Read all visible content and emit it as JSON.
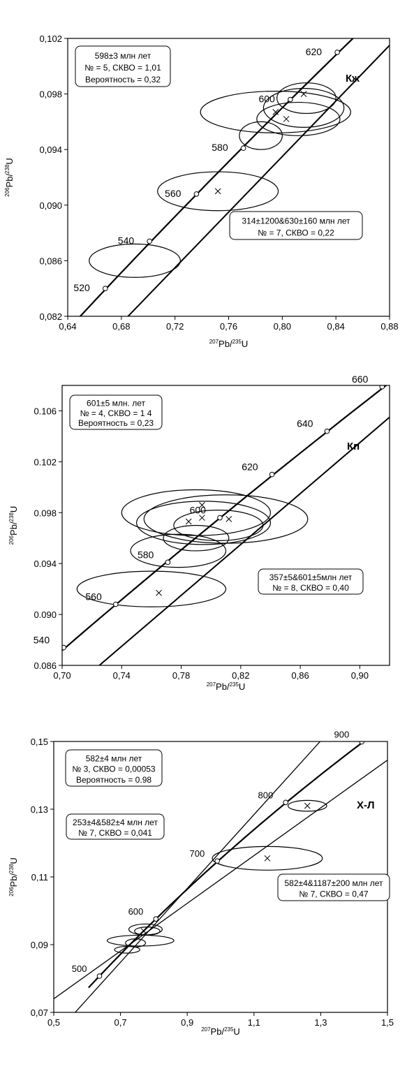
{
  "axis_labels": {
    "y_sup": "206",
    "y_main": "Pb/",
    "y_sup2": "238",
    "y_tail": "U",
    "x_sup": "207",
    "x_main": "Pb/",
    "x_sup2": "235",
    "x_tail": "U"
  },
  "chart_data": [
    {
      "type": "scatter",
      "panel_label": "Кж",
      "xlim": [
        0.64,
        0.88
      ],
      "ylim": [
        0.082,
        0.102
      ],
      "x_ticks": [
        "0,64",
        "0,68",
        "0,72",
        "0,76",
        "0,80",
        "0,84",
        "0,88"
      ],
      "y_ticks": [
        "0,082",
        "0,086",
        "0,090",
        "0,094",
        "0,098",
        "0,102"
      ],
      "concordia_ages": [
        {
          "label": "520",
          "x": 0.668,
          "y": 0.084
        },
        {
          "label": "540",
          "x": 0.701,
          "y": 0.0874
        },
        {
          "label": "560",
          "x": 0.736,
          "y": 0.0908
        },
        {
          "label": "580",
          "x": 0.771,
          "y": 0.0941
        },
        {
          "label": "600",
          "x": 0.806,
          "y": 0.0976
        },
        {
          "label": "620",
          "x": 0.841,
          "y": 0.101
        }
      ],
      "ellipses": [
        {
          "x": 0.69,
          "y": 0.086,
          "rx": 0.034,
          "ry": 0.0012
        },
        {
          "x": 0.752,
          "y": 0.091,
          "rx": 0.045,
          "ry": 0.0014
        },
        {
          "x": 0.784,
          "y": 0.095,
          "rx": 0.016,
          "ry": 0.001
        },
        {
          "x": 0.795,
          "y": 0.0967,
          "rx": 0.056,
          "ry": 0.0015
        },
        {
          "x": 0.812,
          "y": 0.0962,
          "rx": 0.031,
          "ry": 0.0012
        },
        {
          "x": 0.816,
          "y": 0.097,
          "rx": 0.03,
          "ry": 0.0014
        },
        {
          "x": 0.818,
          "y": 0.0977,
          "rx": 0.022,
          "ry": 0.0011
        }
      ],
      "points": [
        {
          "x": 0.752,
          "y": 0.091
        },
        {
          "x": 0.795,
          "y": 0.0967
        },
        {
          "x": 0.816,
          "y": 0.098
        },
        {
          "x": 0.803,
          "y": 0.0962
        }
      ],
      "info_boxes": [
        {
          "lines": [
            "598±3 млн лет",
            "№ = 5, СКВО = 1,01",
            "Вероятность = 0,32"
          ]
        },
        {
          "lines": [
            "314±1200&630±160  млн лет",
            "№ = 7, СКВО = 0,22"
          ]
        }
      ]
    },
    {
      "type": "scatter",
      "panel_label": "Кп",
      "xlim": [
        0.7,
        0.92
      ],
      "ylim": [
        0.086,
        0.108
      ],
      "x_ticks": [
        "0,70",
        "0,74",
        "0,78",
        "0,82",
        "0,86",
        "0,90"
      ],
      "y_ticks": [
        "0.086",
        "0.090",
        "0.094",
        "0.098",
        "0.102",
        "0.106"
      ],
      "concordia_ages": [
        {
          "label": "540",
          "x": 0.701,
          "y": 0.0874
        },
        {
          "label": "560",
          "x": 0.736,
          "y": 0.0908
        },
        {
          "label": "580",
          "x": 0.771,
          "y": 0.0941
        },
        {
          "label": "600",
          "x": 0.806,
          "y": 0.0976
        },
        {
          "label": "620",
          "x": 0.841,
          "y": 0.101
        },
        {
          "label": "640",
          "x": 0.878,
          "y": 0.1044
        },
        {
          "label": "660",
          "x": 0.915,
          "y": 0.1079
        }
      ],
      "ellipses": [
        {
          "x": 0.76,
          "y": 0.092,
          "rx": 0.05,
          "ry": 0.0014
        },
        {
          "x": 0.778,
          "y": 0.095,
          "rx": 0.032,
          "ry": 0.0013
        },
        {
          "x": 0.79,
          "y": 0.096,
          "rx": 0.022,
          "ry": 0.001
        },
        {
          "x": 0.795,
          "y": 0.0972,
          "rx": 0.045,
          "ry": 0.0017
        },
        {
          "x": 0.805,
          "y": 0.097,
          "rx": 0.03,
          "ry": 0.0012
        },
        {
          "x": 0.81,
          "y": 0.0975,
          "rx": 0.055,
          "ry": 0.0019
        },
        {
          "x": 0.79,
          "y": 0.098,
          "rx": 0.05,
          "ry": 0.0018
        }
      ],
      "points": [
        {
          "x": 0.765,
          "y": 0.0917
        },
        {
          "x": 0.785,
          "y": 0.0973
        },
        {
          "x": 0.794,
          "y": 0.0986
        },
        {
          "x": 0.794,
          "y": 0.0976
        },
        {
          "x": 0.812,
          "y": 0.0975
        }
      ],
      "info_boxes": [
        {
          "lines": [
            "601±5 млн. лет",
            "№ = 4, СКВО = 1 4",
            "Вероятность = 0,23"
          ]
        },
        {
          "lines": [
            "357±5&601±5млн лет",
            "№ = 8, СКВО = 0,40"
          ]
        }
      ]
    },
    {
      "type": "scatter",
      "panel_label": "Х-Л",
      "xlim": [
        0.5,
        1.5
      ],
      "ylim": [
        0.07,
        0.15
      ],
      "x_ticks": [
        "0,5",
        "0,7",
        "0,9",
        "1,1",
        "1,3",
        "1,5"
      ],
      "y_ticks": [
        "0,07",
        "0,09",
        "0,11",
        "0,13",
        "0,15"
      ],
      "concordia_ages": [
        {
          "label": "500",
          "x": 0.637,
          "y": 0.0807
        },
        {
          "label": "600",
          "x": 0.806,
          "y": 0.0976
        },
        {
          "label": "700",
          "x": 0.99,
          "y": 0.1147
        },
        {
          "label": "800",
          "x": 1.195,
          "y": 0.132
        },
        {
          "label": "900",
          "x": 1.423,
          "y": 0.1499
        }
      ],
      "ellipses": [
        {
          "x": 1.14,
          "y": 0.1155,
          "rx": 0.165,
          "ry": 0.0035
        },
        {
          "x": 1.26,
          "y": 0.131,
          "rx": 0.058,
          "ry": 0.0016
        },
        {
          "x": 0.76,
          "y": 0.0912,
          "rx": 0.1,
          "ry": 0.0016
        },
        {
          "x": 0.775,
          "y": 0.0945,
          "rx": 0.05,
          "ry": 0.0016
        },
        {
          "x": 0.78,
          "y": 0.094,
          "rx": 0.038,
          "ry": 0.0012
        },
        {
          "x": 0.72,
          "y": 0.0885,
          "rx": 0.038,
          "ry": 0.001
        },
        {
          "x": 0.745,
          "y": 0.0905,
          "rx": 0.03,
          "ry": 0.0012
        }
      ],
      "points": [
        {
          "x": 1.14,
          "y": 0.1155
        },
        {
          "x": 1.26,
          "y": 0.131
        },
        {
          "x": 0.77,
          "y": 0.094
        }
      ],
      "info_boxes": [
        {
          "lines": [
            "582±4 млн лет",
            "№ 3, СКВО = 0,00053",
            "Вероятность = 0.98"
          ]
        },
        {
          "lines": [
            "253±4&582±4 млн лет",
            "№ 7, СКВО = 0,041"
          ]
        },
        {
          "lines": [
            "582±4&1187±200 млн лет",
            "№ 7, СКВО = 0,47"
          ]
        }
      ]
    }
  ]
}
